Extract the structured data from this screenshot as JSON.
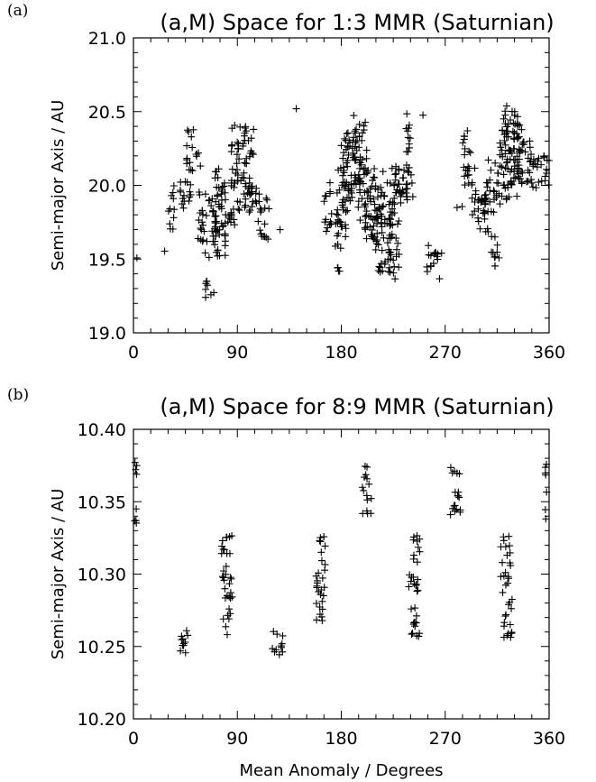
{
  "panels": [
    {
      "tag": "(a)"
    },
    {
      "tag": "(b)"
    }
  ],
  "chart_data": [
    {
      "type": "scatter",
      "title": "(a,M) Space for 1:3 MMR (Saturnian)",
      "xlabel": "",
      "ylabel": "Semi-major Axis / AU",
      "xlim": [
        0,
        360
      ],
      "ylim": [
        19.0,
        21.0
      ],
      "xticks": [
        "0",
        "90",
        "180",
        "270",
        "360"
      ],
      "yticks": [
        "19.0",
        "19.5",
        "20.0",
        "20.5",
        "21.0"
      ],
      "marker": "+",
      "clusters": [
        {
          "x": [
            3
          ],
          "y": [
            19.5,
            19.54
          ]
        },
        {
          "x": [
            27
          ],
          "y": [
            19.54,
            19.58
          ]
        },
        {
          "x": [
            30,
            36
          ],
          "y": [
            19.68,
            20.02
          ]
        },
        {
          "x": [
            40,
            46
          ],
          "y": [
            19.8,
            20.05
          ]
        },
        {
          "x": [
            46,
            52
          ],
          "y": [
            19.86,
            20.38
          ]
        },
        {
          "x": [
            48,
            58
          ],
          "y": [
            20.12,
            20.26
          ]
        },
        {
          "x": [
            54,
            62
          ],
          "y": [
            19.62,
            19.96
          ]
        },
        {
          "x": [
            62,
            70
          ],
          "y": [
            19.18,
            19.36
          ]
        },
        {
          "x": [
            60,
            74
          ],
          "y": [
            19.48,
            20.02
          ]
        },
        {
          "x": [
            70,
            80
          ],
          "y": [
            19.52,
            20.16
          ]
        },
        {
          "x": [
            76,
            88
          ],
          "y": [
            19.72,
            20.02
          ]
        },
        {
          "x": [
            84,
            98
          ],
          "y": [
            19.8,
            20.42
          ]
        },
        {
          "x": [
            94,
            104
          ],
          "y": [
            19.82,
            20.38
          ]
        },
        {
          "x": [
            100,
            112
          ],
          "y": [
            19.78,
            20.0
          ]
        },
        {
          "x": [
            108,
            118
          ],
          "y": [
            19.6,
            19.95
          ]
        },
        {
          "x": [
            127
          ],
          "y": [
            19.68,
            19.7
          ]
        },
        {
          "x": [
            141
          ],
          "y": [
            20.5,
            20.52
          ]
        },
        {
          "x": [
            165,
            172
          ],
          "y": [
            19.62,
            20.02
          ]
        },
        {
          "x": [
            174,
            180
          ],
          "y": [
            19.4,
            19.8
          ]
        },
        {
          "x": [
            176,
            186
          ],
          "y": [
            19.62,
            20.14
          ]
        },
        {
          "x": [
            180,
            190
          ],
          "y": [
            19.82,
            20.36
          ]
        },
        {
          "x": [
            184,
            196
          ],
          "y": [
            19.96,
            20.38
          ]
        },
        {
          "x": [
            190,
            202
          ],
          "y": [
            19.96,
            20.48
          ]
        },
        {
          "x": [
            194,
            206
          ],
          "y": [
            19.72,
            20.2
          ]
        },
        {
          "x": [
            200,
            212
          ],
          "y": [
            19.6,
            20.0
          ]
        },
        {
          "x": [
            206,
            218
          ],
          "y": [
            19.56,
            20.12
          ]
        },
        {
          "x": [
            212,
            226
          ],
          "y": [
            19.4,
            20.02
          ]
        },
        {
          "x": [
            220,
            230
          ],
          "y": [
            19.34,
            19.86
          ]
        },
        {
          "x": [
            224,
            234
          ],
          "y": [
            19.86,
            20.18
          ]
        },
        {
          "x": [
            228,
            238
          ],
          "y": [
            19.9,
            20.2
          ]
        },
        {
          "x": [
            236,
            242
          ],
          "y": [
            19.9,
            20.52
          ]
        },
        {
          "x": [
            250,
            252
          ],
          "y": [
            20.46,
            20.5
          ]
        },
        {
          "x": [
            254,
            268
          ],
          "y": [
            19.36,
            19.62
          ]
        },
        {
          "x": [
            280,
            286
          ],
          "y": [
            19.84,
            19.88
          ]
        },
        {
          "x": [
            284,
            292
          ],
          "y": [
            20.2,
            20.42
          ]
        },
        {
          "x": [
            286,
            296
          ],
          "y": [
            19.9,
            20.14
          ]
        },
        {
          "x": [
            292,
            304
          ],
          "y": [
            19.8,
            20.02
          ]
        },
        {
          "x": [
            298,
            310
          ],
          "y": [
            19.68,
            20.0
          ]
        },
        {
          "x": [
            304,
            316
          ],
          "y": [
            19.8,
            20.18
          ]
        },
        {
          "x": [
            310,
            318
          ],
          "y": [
            19.4,
            19.66
          ]
        },
        {
          "x": [
            316,
            328
          ],
          "y": [
            19.86,
            20.42
          ]
        },
        {
          "x": [
            320,
            334
          ],
          "y": [
            19.92,
            20.54
          ]
        },
        {
          "x": [
            326,
            340
          ],
          "y": [
            20.0,
            20.46
          ]
        },
        {
          "x": [
            334,
            346
          ],
          "y": [
            20.0,
            20.3
          ]
        },
        {
          "x": [
            340,
            352
          ],
          "y": [
            19.98,
            20.2
          ]
        },
        {
          "x": [
            350,
            360
          ],
          "y": [
            20.0,
            20.26
          ]
        }
      ]
    },
    {
      "type": "scatter",
      "title": "(a,M) Space for 8:9 MMR (Saturnian)",
      "xlabel": "Mean Anomaly / Degrees",
      "ylabel": "Semi-major Axis / AU",
      "xlim": [
        0,
        360
      ],
      "ylim": [
        10.2,
        10.4
      ],
      "xticks": [
        "0",
        "90",
        "180",
        "270",
        "360"
      ],
      "yticks": [
        "10.20",
        "10.25",
        "10.30",
        "10.35",
        "10.40"
      ],
      "marker": "+",
      "clusters": [
        {
          "x": [
            1,
            3
          ],
          "y": [
            10.335,
            10.38
          ]
        },
        {
          "x": [
            38,
            48
          ],
          "y": [
            10.24,
            10.262
          ]
        },
        {
          "x": [
            76,
            86
          ],
          "y": [
            10.256,
            10.328
          ]
        },
        {
          "x": [
            120,
            130
          ],
          "y": [
            10.24,
            10.262
          ]
        },
        {
          "x": [
            158,
            166
          ],
          "y": [
            10.256,
            10.328
          ]
        },
        {
          "x": [
            198,
            206
          ],
          "y": [
            10.34,
            10.376
          ]
        },
        {
          "x": [
            238,
            248
          ],
          "y": [
            10.256,
            10.328
          ]
        },
        {
          "x": [
            274,
            284
          ],
          "y": [
            10.338,
            10.376
          ]
        },
        {
          "x": [
            318,
            328
          ],
          "y": [
            10.256,
            10.328
          ]
        },
        {
          "x": [
            356,
            358
          ],
          "y": [
            10.338,
            10.378
          ]
        }
      ]
    }
  ]
}
